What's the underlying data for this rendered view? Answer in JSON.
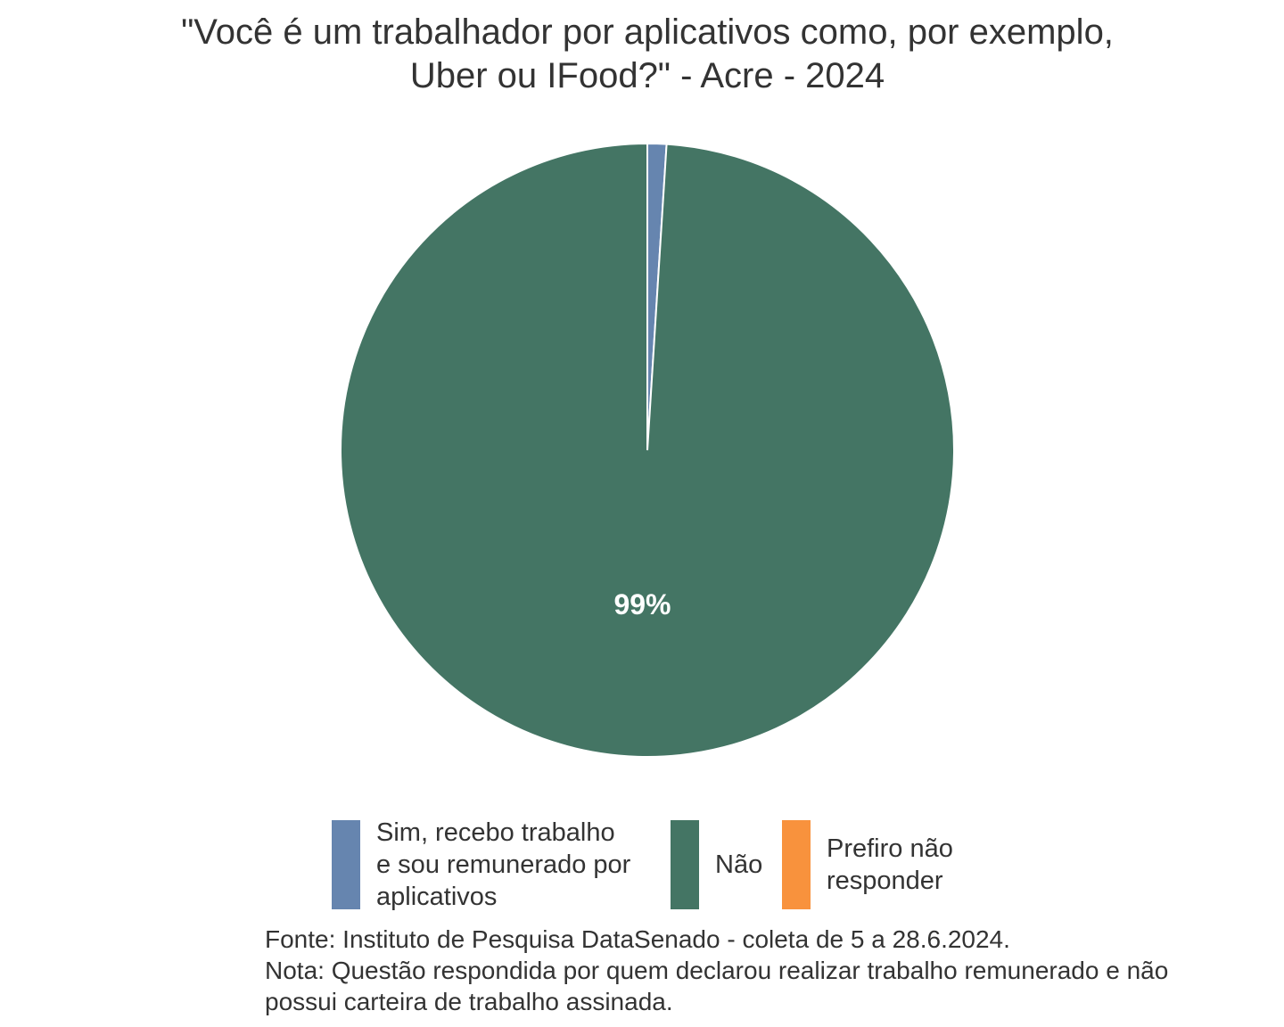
{
  "chart_data": {
    "type": "pie",
    "title_lines": [
      "\"Você é um trabalhador por aplicativos como, por exemplo,",
      "Uber ou IFood?\" - Acre - 2024"
    ],
    "slices": [
      {
        "label_lines": [
          "Sim, recebo trabalho",
          "e sou remunerado por",
          "aplicativos"
        ],
        "value": 1,
        "color": "#6685AF",
        "data_label": ""
      },
      {
        "label_lines": [
          "Não"
        ],
        "value": 99,
        "color": "#447564",
        "data_label": "99%"
      },
      {
        "label_lines": [
          "Prefiro não",
          "responder"
        ],
        "value": 0,
        "color": "#F8923D",
        "data_label": ""
      }
    ],
    "legend_position": "bottom",
    "caption_lines": [
      "Fonte: Instituto de Pesquisa DataSenado - coleta de 5 a 28.6.2024.",
      "Nota: Questão respondida por quem declarou realizar trabalho remunerado e não",
      "possui carteira de trabalho assinada."
    ]
  }
}
